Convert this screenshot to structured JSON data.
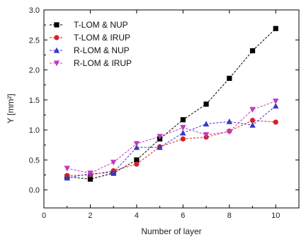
{
  "chart_data": {
    "type": "line",
    "xlabel": "Number of layer",
    "ylabel": "Y [mm²]",
    "xlim": [
      0,
      11
    ],
    "ylim": [
      -0.3,
      3.0
    ],
    "xticks": [
      0,
      2,
      4,
      6,
      8,
      10
    ],
    "yticks": [
      0.0,
      0.5,
      1.0,
      1.5,
      2.0,
      2.5,
      3.0
    ],
    "grid": false,
    "legend_position": "top-left",
    "x": [
      1,
      2,
      3,
      4,
      5,
      6,
      7,
      8,
      9,
      10
    ],
    "series": [
      {
        "name": "T-LOM & NUP",
        "marker": "square",
        "color": "#000000",
        "values": [
          0.22,
          0.18,
          0.28,
          0.5,
          0.85,
          1.17,
          1.43,
          1.86,
          2.32,
          2.69
        ]
      },
      {
        "name": "T-LOM & IRUP",
        "marker": "circle",
        "color": "#d8202a",
        "values": [
          0.24,
          0.25,
          0.32,
          0.43,
          0.72,
          0.85,
          0.88,
          0.98,
          1.16,
          1.13
        ]
      },
      {
        "name": "R-LOM & NUP",
        "marker": "triangle-up",
        "color": "#3a3ac8",
        "values": [
          0.2,
          0.27,
          0.29,
          0.71,
          0.71,
          0.95,
          1.1,
          1.14,
          1.08,
          1.4
        ]
      },
      {
        "name": "R-LOM & IRUP",
        "marker": "triangle-down",
        "color": "#c23bc0",
        "values": [
          0.36,
          0.28,
          0.46,
          0.77,
          0.89,
          1.04,
          0.92,
          0.97,
          1.34,
          1.48
        ]
      }
    ]
  }
}
